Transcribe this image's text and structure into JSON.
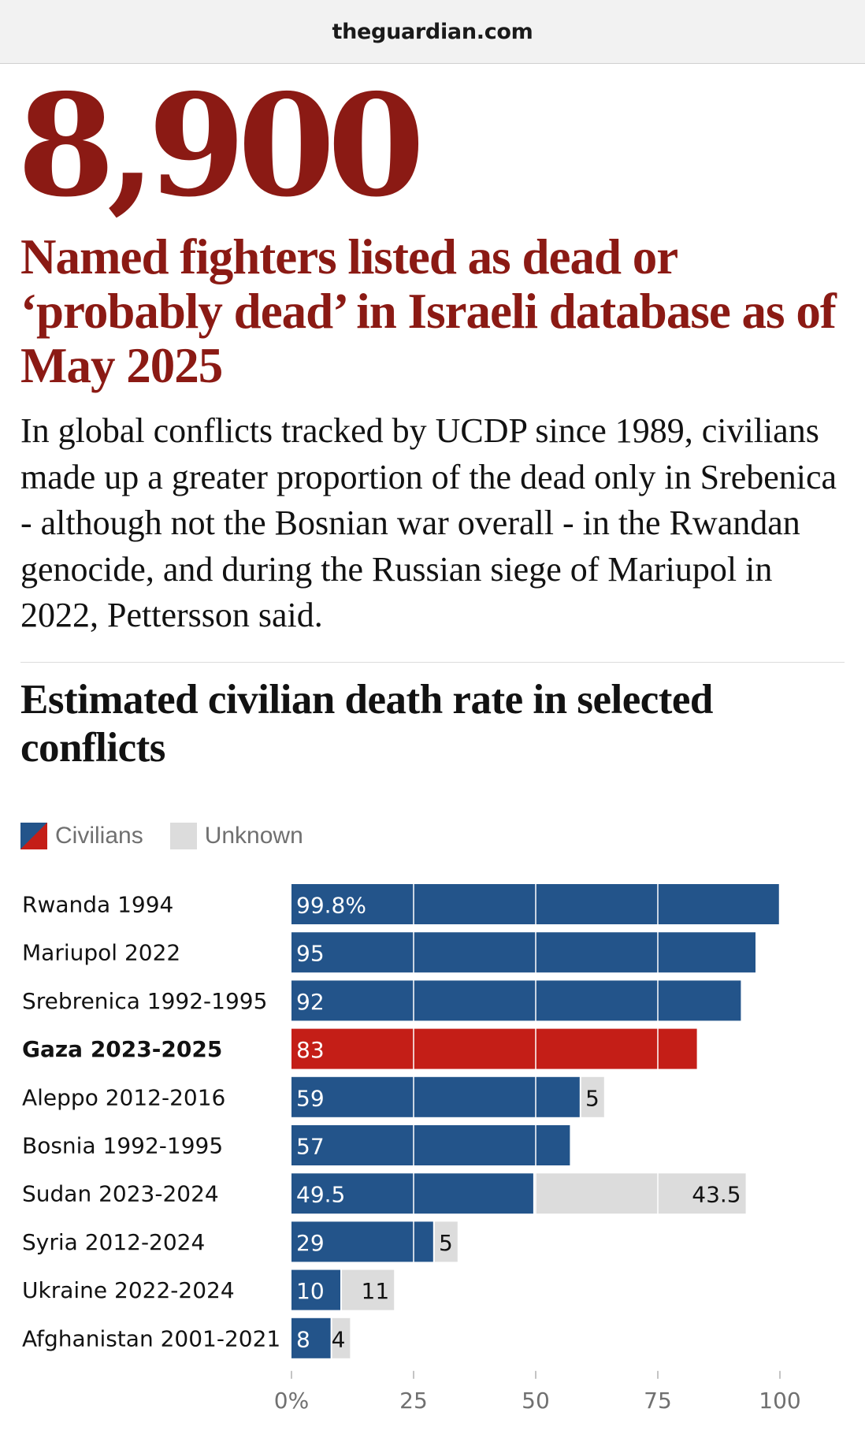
{
  "header": {
    "url": "theguardian.com"
  },
  "stat": {
    "big_number": "8,900"
  },
  "headline": "Named fighters listed as dead or ‘probably dead’ in Israeli database as of May 2025",
  "body": "In global conflicts tracked by UCDP since 1989, civilians made up a greater proportion of the dead only in Srebenica - although not the Bosnian war overall - in the Rwandan genocide, and during the Russian siege of Mariupol in 2022, Pettersson said.",
  "colors": {
    "accent": "#8b1a14",
    "civilians": "#23548a",
    "highlight": "#c41e17",
    "unknown": "#dcdcdc"
  },
  "chart_data": {
    "type": "bar",
    "orientation": "horizontal",
    "stacked": true,
    "title": "Estimated civilian death rate in selected conflicts",
    "legend": [
      {
        "name": "Civilians",
        "color": "#23548a"
      },
      {
        "name": "Unknown",
        "color": "#dcdcdc"
      }
    ],
    "categories": [
      "Rwanda 1994",
      "Mariupol 2022",
      "Srebrenica 1992-1995",
      "Gaza 2023-2025",
      "Aleppo 2012-2016",
      "Bosnia 1992-1995",
      "Sudan 2023-2024",
      "Syria 2012-2024",
      "Ukraine 2022-2024",
      "Afghanistan 2001-2021"
    ],
    "highlight_category": "Gaza 2023-2025",
    "series": [
      {
        "name": "Civilians",
        "values": [
          99.8,
          95,
          92,
          83,
          59,
          57,
          49.5,
          29,
          10,
          8
        ],
        "labels": [
          "99.8%",
          "95",
          "92",
          "83",
          "59",
          "57",
          "49.5",
          "29",
          "10",
          "8"
        ]
      },
      {
        "name": "Unknown",
        "values": [
          0,
          0,
          0,
          0,
          5,
          0,
          43.5,
          5,
          11,
          4
        ],
        "labels": [
          "",
          "",
          "",
          "",
          "5",
          "",
          "43.5",
          "5",
          "11",
          "4"
        ]
      }
    ],
    "xlim": [
      0,
      100
    ],
    "x_ticks": [
      0,
      25,
      50,
      75,
      100
    ],
    "x_tick_labels": [
      "0%",
      "25",
      "50",
      "75",
      "100"
    ],
    "grid": true
  }
}
